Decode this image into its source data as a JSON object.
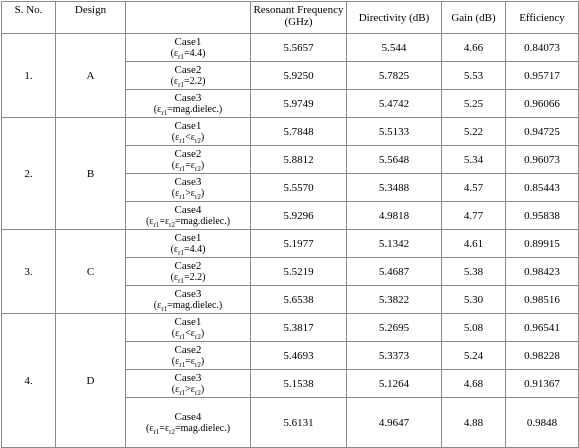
{
  "table": {
    "header": [
      "S. No.",
      "Design",
      "Resonant Frequency (GHz)",
      "Directivity (dB)",
      "Gain (dB)",
      "Efficiency"
    ],
    "groups": [
      {
        "no": "1.",
        "design": "A",
        "rows": [
          {
            "case": "Case1",
            "condition": [
              "(ε",
              "r1",
              "=4.4)"
            ],
            "frequency": "5.5657",
            "directivity": "5.544",
            "gain": "4.66",
            "efficiency": "0.84073"
          },
          {
            "case": "Case2",
            "condition": [
              "(ε",
              "r1",
              "=2.2)"
            ],
            "frequency": "5.9250",
            "directivity": "5.7825",
            "gain": "5.53",
            "efficiency": "0.95717"
          },
          {
            "case": "Case3",
            "condition": [
              "(ε",
              "r1",
              "=mag.dielec.)"
            ],
            "frequency": "5.9749",
            "directivity": "5.4742",
            "gain": "5.25",
            "efficiency": "0.96066"
          }
        ]
      },
      {
        "no": "2.",
        "design": "B",
        "rows": [
          {
            "case": "Case1",
            "condition": [
              "(ε",
              "r1",
              "<ε",
              "r2",
              ")"
            ],
            "frequency": "5.7848",
            "directivity": "5.5133",
            "gain": "5.22",
            "efficiency": "0.94725"
          },
          {
            "case": "Case2",
            "condition": [
              "(ε",
              "r1",
              "=ε",
              "r2",
              ")"
            ],
            "frequency": "5.8812",
            "directivity": "5.5648",
            "gain": "5.34",
            "efficiency": "0.96073"
          },
          {
            "case": "Case3",
            "condition": [
              "(ε",
              "r1",
              ">ε",
              "r2",
              ")"
            ],
            "frequency": "5.5570",
            "directivity": "5.3488",
            "gain": "4.57",
            "efficiency": "0.85443"
          },
          {
            "case": "Case4",
            "condition": [
              "(ε",
              "r1",
              "=ε",
              "r2",
              "=mag.dielec.)"
            ],
            "frequency": "5.9296",
            "directivity": "4.9818",
            "gain": "4.77",
            "efficiency": "0.95838"
          }
        ]
      },
      {
        "no": "3.",
        "design": "C",
        "rows": [
          {
            "case": "Case1",
            "condition": [
              "(ε",
              "r1",
              "=4.4)"
            ],
            "frequency": "5.1977",
            "directivity": "5.1342",
            "gain": "4.61",
            "efficiency": "0.89915"
          },
          {
            "case": "Case2",
            "condition": [
              "(ε",
              "r1",
              "=2.2)"
            ],
            "frequency": "5.5219",
            "directivity": "5.4687",
            "gain": "5.38",
            "efficiency": "0.98423"
          },
          {
            "case": "Case3",
            "condition": [
              "(ε",
              "r1",
              "=mag.dielec.)"
            ],
            "frequency": "5.6538",
            "directivity": "5.3822",
            "gain": "5.30",
            "efficiency": "0.98516"
          }
        ]
      },
      {
        "no": "4.",
        "design": "D",
        "rows": [
          {
            "case": "Case1",
            "condition": [
              "(ε",
              "r1",
              "<ε",
              "r2",
              ")"
            ],
            "frequency": "5.3817",
            "directivity": "5.2695",
            "gain": "5.08",
            "efficiency": "0.96541"
          },
          {
            "case": "Case2",
            "condition": [
              "(ε",
              "r1",
              "=ε",
              "r2",
              ")"
            ],
            "frequency": "5.4693",
            "directivity": "5.3373",
            "gain": "5.24",
            "efficiency": "0.98228"
          },
          {
            "case": "Case3",
            "condition": [
              "(ε",
              "r1",
              ">ε",
              "r2",
              ")"
            ],
            "frequency": "5.1538",
            "directivity": "5.1264",
            "gain": "4.68",
            "efficiency": "0.91367"
          },
          {
            "case": "Case4",
            "condition": [
              "(ε",
              "r1",
              "=ε",
              "r2",
              "=mag.dielec.)"
            ],
            "frequency": "5.6131",
            "directivity": "4.9647",
            "gain": "4.88",
            "efficiency": "0.9848"
          }
        ]
      }
    ]
  }
}
